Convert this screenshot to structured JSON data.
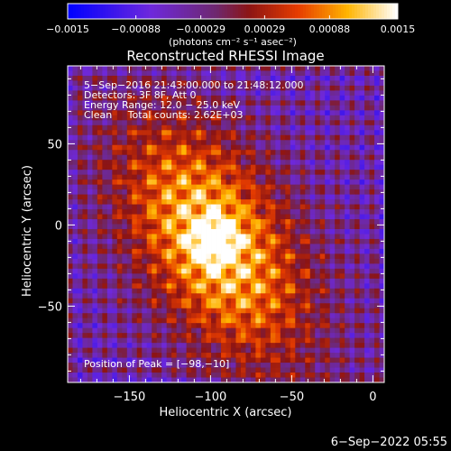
{
  "chart_data": {
    "type": "heatmap",
    "title": "Reconstructed RHESSI Image",
    "xlabel": "Heliocentric X (arcsec)",
    "ylabel": "Heliocentric Y (arcsec)",
    "xlim": [
      -188,
      7
    ],
    "ylim": [
      -97,
      98
    ],
    "x_ticks": [
      -150,
      -100,
      -50,
      0
    ],
    "x_tick_labels": [
      "−150",
      "−100",
      "−50",
      "0"
    ],
    "y_ticks": [
      -50,
      0,
      50
    ],
    "y_tick_labels": [
      "−50",
      "0",
      "50"
    ],
    "colorbar": {
      "range": [
        -0.0015,
        0.0015
      ],
      "ticks": [
        -0.0015,
        -0.00088,
        -0.00029,
        0.00029,
        0.00088,
        0.0015
      ],
      "tick_labels": [
        "−0.0015",
        "−0.00088",
        "−0.00029",
        "0.00029",
        "0.00088",
        "0.0015"
      ],
      "unit_label": "(photons cm⁻² s⁻¹ asec⁻²)",
      "colormap": "rhessi-blue-purple-red-yellow-white"
    },
    "annotations": {
      "time": "5−Sep−2016 21:43:00.000 to 21:48:12.000",
      "detectors": "Detectors: 3F 8F, Att 0",
      "energy": "Energy Range: 12.0 − 25.0 keV",
      "clean": "Clean     Total counts: 2.62E+03",
      "peak": "Position of Peak = [−98,−10]"
    },
    "peak_position": [
      -98,
      -10
    ],
    "timestamp": "6−Sep−2022 05:55"
  }
}
